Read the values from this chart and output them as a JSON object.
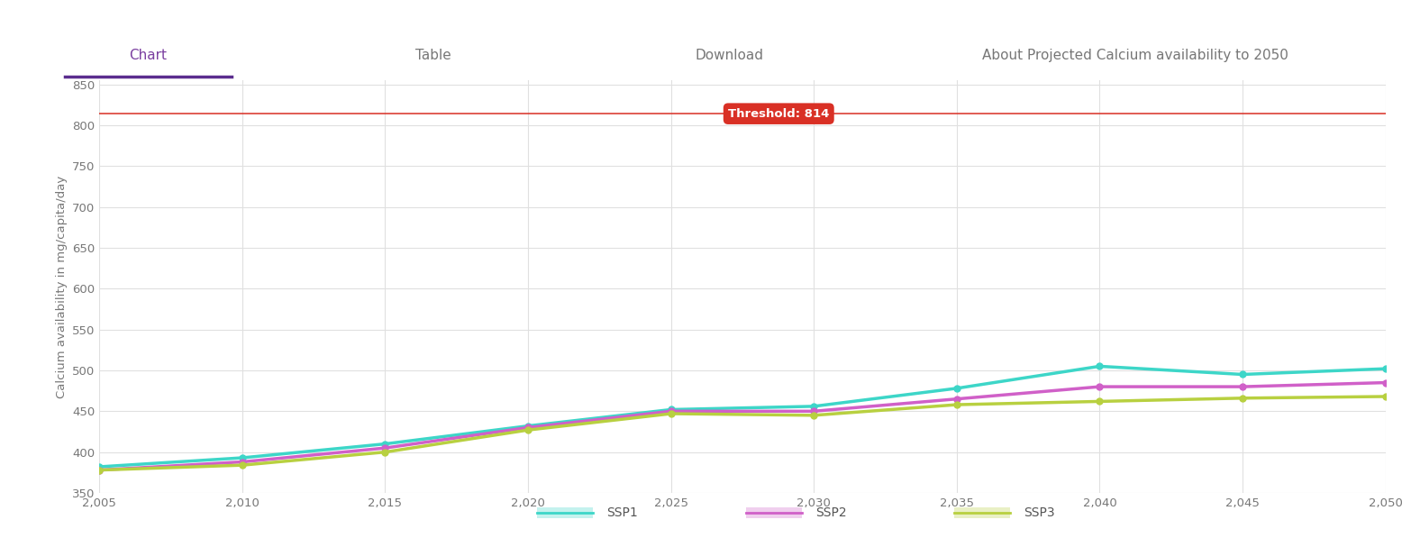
{
  "title": "Projected Calcium availability to 2050",
  "ylabel": "Calcium availability in mg/capita/day",
  "threshold": 814,
  "threshold_label": "Threshold: 814",
  "threshold_color": "#d93025",
  "header_color": "#7b3fa0",
  "tab_underline_color": "#5b2d8e",
  "tab_separator_color": "#cccccc",
  "years": [
    2005,
    2010,
    2015,
    2020,
    2025,
    2030,
    2035,
    2040,
    2045,
    2050
  ],
  "ssp1": [
    382,
    393,
    410,
    432,
    452,
    456,
    478,
    505,
    495,
    502
  ],
  "ssp2": [
    378,
    388,
    405,
    430,
    450,
    450,
    465,
    480,
    480,
    485
  ],
  "ssp3": [
    378,
    384,
    400,
    427,
    447,
    445,
    458,
    462,
    466,
    468
  ],
  "ssp1_color": "#3dd6c8",
  "ssp2_color": "#d060c8",
  "ssp3_color": "#b8d040",
  "ylim_min": 350,
  "ylim_max": 855,
  "yticks": [
    350,
    400,
    450,
    500,
    550,
    600,
    650,
    700,
    750,
    800,
    850
  ],
  "xticks": [
    2005,
    2010,
    2015,
    2020,
    2025,
    2030,
    2035,
    2040,
    2045,
    2050
  ],
  "tab_chart": "Chart",
  "tab_table": "Table",
  "tab_download": "Download",
  "tab_about": "About Projected Calcium availability to 2050",
  "linewidth": 2.5,
  "marker_size": 5,
  "grid_color": "#e0e0e0",
  "tick_color": "#777777",
  "threshold_x": 2027
}
